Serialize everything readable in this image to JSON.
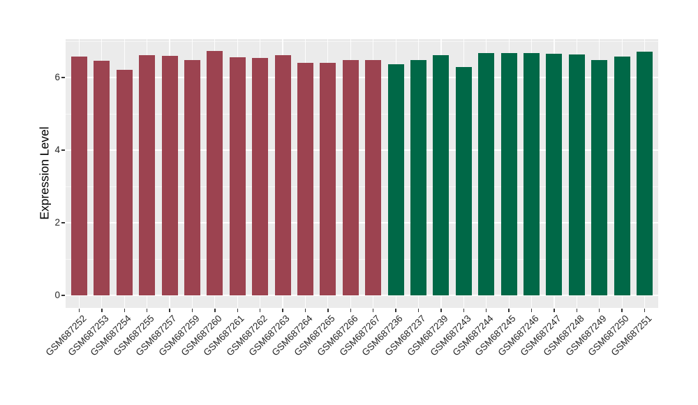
{
  "chart_data": {
    "type": "bar",
    "title": "",
    "xlabel": "",
    "ylabel": "Expression Level",
    "ylim": [
      0,
      7.06
    ],
    "yticks": [
      0,
      2,
      4,
      6
    ],
    "yminor": [
      1,
      3,
      5,
      7
    ],
    "grid": true,
    "legend": "none",
    "panel_background": "#EBEBEB",
    "gridline_color": "#FFFFFF",
    "x_label_rotation_deg": 45,
    "categories": [
      "GSM687252",
      "GSM687253",
      "GSM687254",
      "GSM687255",
      "GSM687257",
      "GSM687259",
      "GSM687260",
      "GSM687261",
      "GSM687262",
      "GSM687263",
      "GSM687264",
      "GSM687265",
      "GSM687266",
      "GSM687267",
      "GSM687236",
      "GSM687237",
      "GSM687239",
      "GSM687243",
      "GSM687244",
      "GSM687245",
      "GSM687246",
      "GSM687247",
      "GSM687248",
      "GSM687249",
      "GSM687250",
      "GSM687251"
    ],
    "values": [
      6.57,
      6.46,
      6.22,
      6.62,
      6.6,
      6.49,
      6.73,
      6.56,
      6.53,
      6.61,
      6.4,
      6.4,
      6.48,
      6.48,
      6.36,
      6.48,
      6.61,
      6.28,
      6.68,
      6.67,
      6.68,
      6.66,
      6.64,
      6.49,
      6.58,
      6.72
    ],
    "bar_groups": [
      "group1",
      "group1",
      "group1",
      "group1",
      "group1",
      "group1",
      "group1",
      "group1",
      "group1",
      "group1",
      "group1",
      "group1",
      "group1",
      "group1",
      "group2",
      "group2",
      "group2",
      "group2",
      "group2",
      "group2",
      "group2",
      "group2",
      "group2",
      "group2",
      "group2",
      "group2"
    ],
    "group_colors": {
      "group1": "#9C4350",
      "group2": "#006847"
    }
  }
}
